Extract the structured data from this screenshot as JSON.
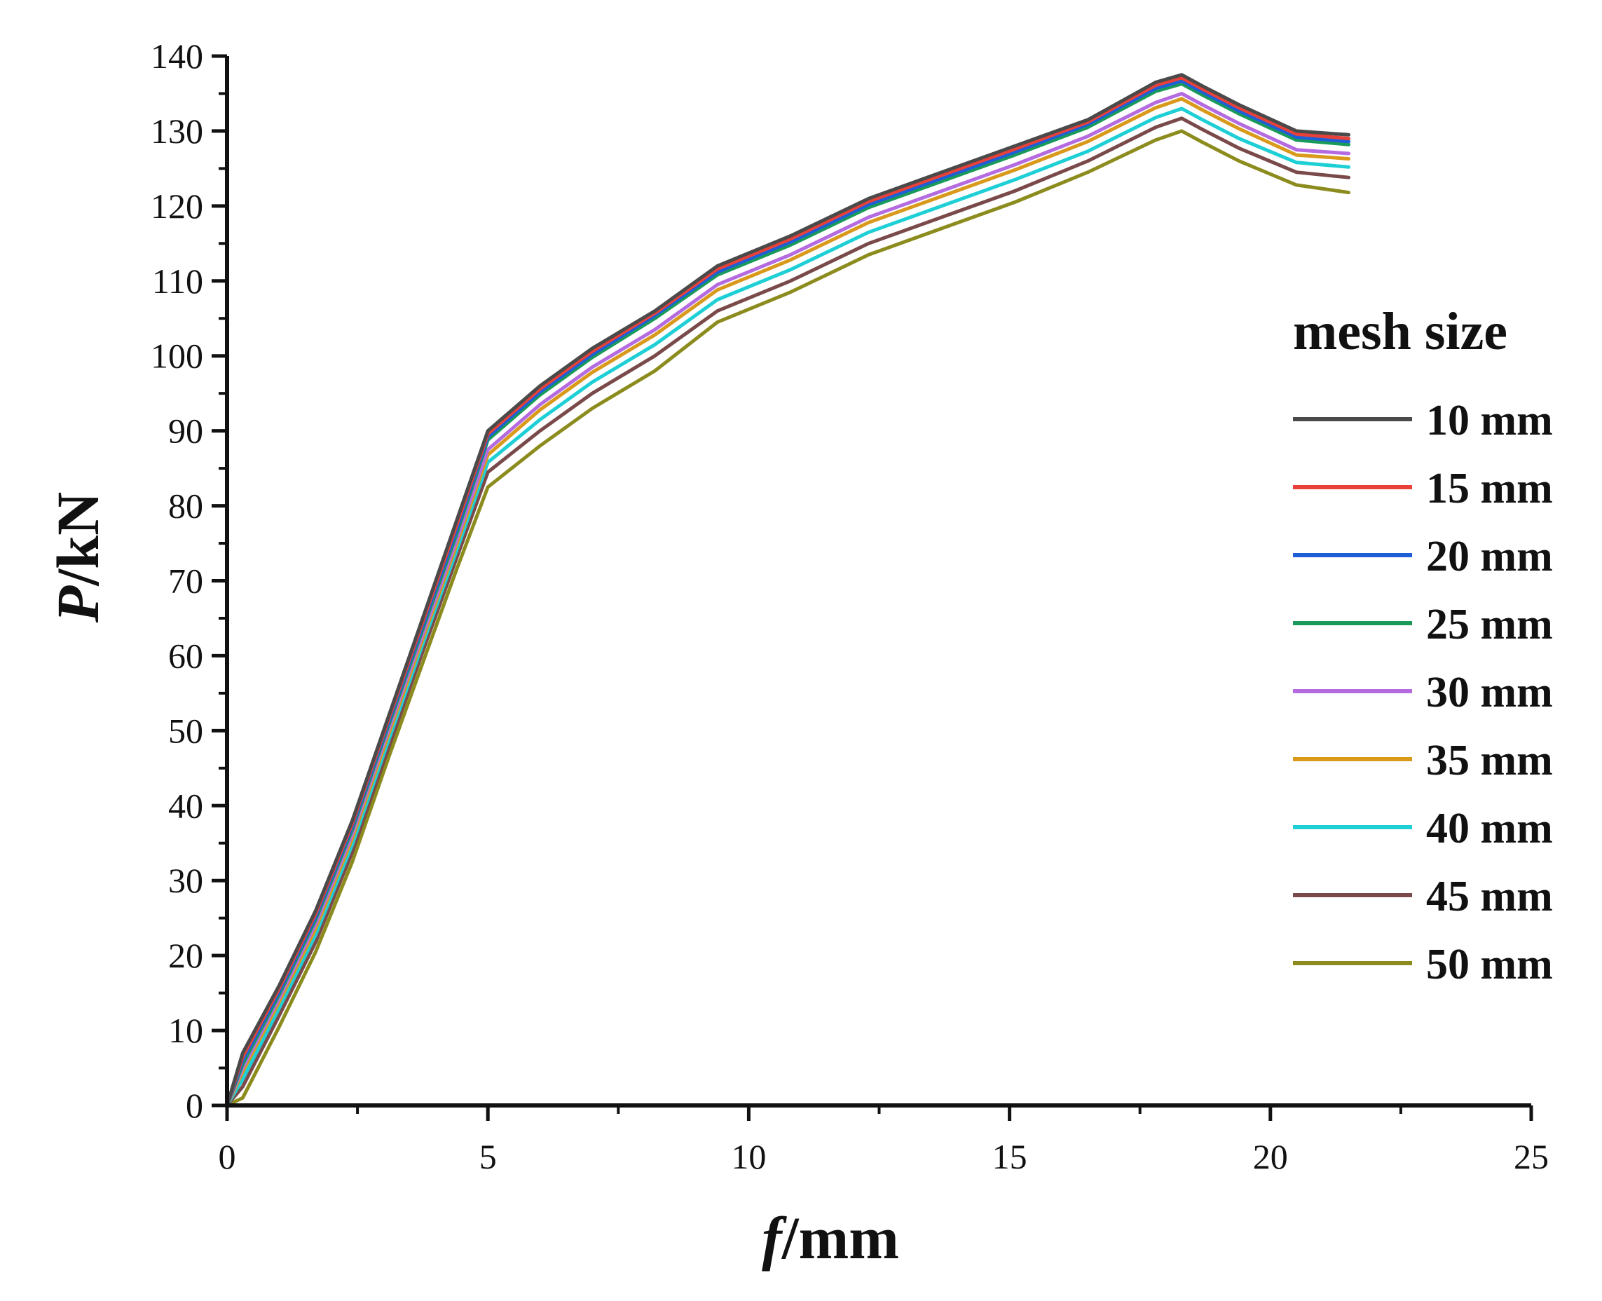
{
  "chart_data": {
    "type": "line",
    "title": "",
    "xlabel": {
      "var": "f",
      "unit": "/mm"
    },
    "ylabel": {
      "var": "P",
      "unit": "/kN"
    },
    "xlim": [
      0,
      25
    ],
    "ylim": [
      0,
      140
    ],
    "xticks": [
      0,
      5,
      10,
      15,
      20,
      25
    ],
    "yticks": [
      0,
      10,
      20,
      30,
      40,
      50,
      60,
      70,
      80,
      90,
      100,
      110,
      120,
      130,
      140
    ],
    "grid": false,
    "legend": {
      "title": "mesh size",
      "placement": "right"
    },
    "series": [
      {
        "name": "10 mm",
        "color": "#4a4a4a",
        "x": [
          0,
          0.3,
          1,
          1.7,
          2.4,
          3.1,
          3.8,
          4.4,
          5,
          6,
          7,
          8.2,
          9.4,
          10.8,
          12.3,
          13.7,
          15.1,
          16.5,
          17.8,
          18.3,
          18.7,
          19.4,
          20.5,
          21.5
        ],
        "y": [
          0,
          7,
          16,
          26,
          38,
          52,
          66,
          78,
          90,
          96,
          101,
          106,
          112,
          116,
          121,
          124.5,
          128,
          131.5,
          136.5,
          137.5,
          136,
          133.5,
          130,
          129.5
        ]
      },
      {
        "name": "15 mm",
        "color": "#e8413a",
        "x": [
          0,
          0.3,
          1,
          1.7,
          2.4,
          3.1,
          3.8,
          4.4,
          5,
          6,
          7,
          8.2,
          9.4,
          10.8,
          12.3,
          13.7,
          15.1,
          16.5,
          17.8,
          18.3,
          18.7,
          19.4,
          20.5,
          21.5
        ],
        "y": [
          0,
          6.5,
          15.6,
          25.6,
          37.6,
          51.6,
          65.5,
          77.4,
          89.6,
          95.6,
          100.6,
          105.7,
          111.6,
          115.6,
          120.6,
          124.1,
          127.6,
          131.2,
          136.1,
          137.1,
          135.6,
          133.1,
          129.6,
          129
        ]
      },
      {
        "name": "20 mm",
        "color": "#1e5fd8",
        "x": [
          0,
          0.3,
          1,
          1.7,
          2.4,
          3.1,
          3.8,
          4.4,
          5,
          6,
          7,
          8.2,
          9.4,
          10.8,
          12.3,
          13.7,
          15.1,
          16.5,
          17.8,
          18.3,
          18.7,
          19.4,
          20.5,
          21.5
        ],
        "y": [
          0,
          6,
          15.2,
          25.2,
          37.2,
          51.2,
          65,
          76.8,
          89.2,
          95.2,
          100.2,
          105.4,
          111.2,
          115.2,
          120.2,
          123.7,
          127.2,
          130.9,
          135.7,
          136.7,
          135.2,
          132.7,
          129.2,
          128.6
        ]
      },
      {
        "name": "25 mm",
        "color": "#1a9a5a",
        "x": [
          0,
          0.3,
          1,
          1.7,
          2.4,
          3.1,
          3.8,
          4.4,
          5,
          6,
          7,
          8.2,
          9.4,
          10.8,
          12.3,
          13.7,
          15.1,
          16.5,
          17.8,
          18.3,
          18.7,
          19.4,
          20.5,
          21.5
        ],
        "y": [
          0,
          5.5,
          14.8,
          24.8,
          36.8,
          50.8,
          64.5,
          76.2,
          88.8,
          94.8,
          99.8,
          105,
          110.8,
          114.8,
          119.8,
          123.3,
          126.8,
          130.5,
          135.3,
          136.3,
          134.8,
          132.3,
          128.8,
          128.2
        ]
      },
      {
        "name": "30 mm",
        "color": "#b56be0",
        "x": [
          0,
          0.3,
          1,
          1.7,
          2.4,
          3.1,
          3.8,
          4.4,
          5,
          6,
          7,
          8.2,
          9.4,
          10.8,
          12.3,
          13.7,
          15.1,
          16.5,
          17.8,
          18.3,
          18.7,
          19.4,
          20.5,
          21.5
        ],
        "y": [
          0,
          5,
          14.3,
          24.2,
          36.2,
          50.2,
          63.8,
          75.4,
          87.5,
          93.5,
          98.5,
          103.5,
          109.5,
          113.5,
          118.5,
          122,
          125.5,
          129.3,
          133.8,
          135,
          133.5,
          131,
          127.5,
          127
        ]
      },
      {
        "name": "35 mm",
        "color": "#d99a1c",
        "x": [
          0,
          0.3,
          1,
          1.7,
          2.4,
          3.1,
          3.8,
          4.4,
          5,
          6,
          7,
          8.2,
          9.4,
          10.8,
          12.3,
          13.7,
          15.1,
          16.5,
          17.8,
          18.3,
          18.7,
          19.4,
          20.5,
          21.5
        ],
        "y": [
          0,
          4.5,
          13.8,
          23.6,
          35.6,
          49.6,
          63.2,
          74.8,
          86.8,
          92.8,
          97.8,
          102.8,
          108.8,
          112.8,
          117.8,
          121.3,
          124.8,
          128.6,
          133.1,
          134.3,
          132.8,
          130.3,
          126.8,
          126.3
        ]
      },
      {
        "name": "40 mm",
        "color": "#1ecfd6",
        "x": [
          0,
          0.3,
          1,
          1.7,
          2.4,
          3.1,
          3.8,
          4.4,
          5,
          6,
          7,
          8.2,
          9.4,
          10.8,
          12.3,
          13.7,
          15.1,
          16.5,
          17.8,
          18.3,
          18.7,
          19.4,
          20.5,
          21.5
        ],
        "y": [
          0,
          3.5,
          13,
          22.8,
          34.8,
          48.8,
          62.5,
          74,
          85.8,
          91.5,
          96.5,
          101.5,
          107.5,
          111.5,
          116.5,
          120,
          123.5,
          127.3,
          131.8,
          133,
          131.5,
          129,
          125.8,
          125.2
        ]
      },
      {
        "name": "45 mm",
        "color": "#7a4a4a",
        "x": [
          0,
          0.3,
          1,
          1.7,
          2.4,
          3.1,
          3.8,
          4.4,
          5,
          6,
          7,
          8.2,
          9.4,
          10.8,
          12.3,
          13.7,
          15.1,
          16.5,
          17.8,
          18.3,
          18.7,
          19.4,
          20.5,
          21.5
        ],
        "y": [
          0,
          2.5,
          12,
          21.8,
          33.8,
          47.8,
          61.5,
          73,
          84.5,
          90,
          95,
          100,
          106,
          110,
          115,
          118.5,
          122,
          126,
          130.5,
          131.7,
          130.2,
          127.7,
          124.5,
          123.8
        ]
      },
      {
        "name": "50 mm",
        "color": "#8c8c1e",
        "x": [
          0,
          0.3,
          1,
          1.7,
          2.4,
          3.1,
          3.8,
          4.4,
          5,
          6,
          7,
          8.2,
          9.4,
          10.8,
          12.3,
          13.7,
          15.1,
          16.5,
          17.8,
          18.3,
          18.7,
          19.4,
          20.5,
          21.5
        ],
        "y": [
          0,
          1,
          10.5,
          20.5,
          32.5,
          46.5,
          60,
          71.5,
          82.5,
          88,
          93,
          98,
          104.5,
          108.5,
          113.5,
          117,
          120.5,
          124.5,
          128.8,
          130,
          128.5,
          126,
          122.8,
          121.8
        ]
      }
    ]
  }
}
